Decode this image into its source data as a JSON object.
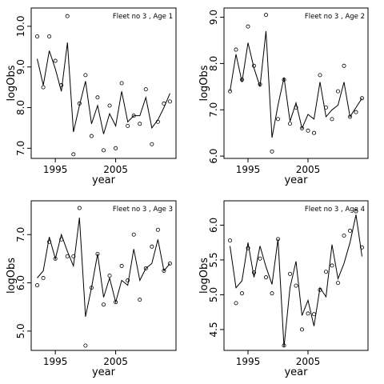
{
  "chart_data": [
    {
      "type": "scatter",
      "title": "Fleet no 3 , Age 1",
      "xlabel": "year",
      "ylabel": "logObs",
      "xlim": [
        1991,
        2015
      ],
      "ylim": [
        6.75,
        10.45
      ],
      "xticks": [
        1995,
        2005
      ],
      "yticks": [
        7.0,
        8.0,
        9.0,
        10.0
      ],
      "series": [
        {
          "kind": "points",
          "x": [
            1992,
            1993,
            1994,
            1995,
            1996,
            1997,
            1998,
            1999,
            2000,
            2001,
            2002,
            2003,
            2004,
            2005,
            2006,
            2007,
            2008,
            2009,
            2010,
            2011,
            2012,
            2013,
            2014
          ],
          "y": [
            9.75,
            8.5,
            9.75,
            9.15,
            8.55,
            10.25,
            6.85,
            8.1,
            8.8,
            7.3,
            8.25,
            6.95,
            8.05,
            7.0,
            8.6,
            7.55,
            7.8,
            7.6,
            8.45,
            7.1,
            7.65,
            8.1,
            8.15
          ]
        },
        {
          "kind": "line",
          "x": [
            1992,
            1993,
            1994,
            1995,
            1996,
            1997,
            1998,
            1999,
            2000,
            2001,
            2002,
            2003,
            2004,
            2005,
            2006,
            2007,
            2008,
            2009,
            2010,
            2011,
            2012,
            2013,
            2014
          ],
          "y": [
            9.2,
            8.55,
            9.4,
            8.95,
            8.4,
            9.6,
            7.4,
            8.05,
            8.65,
            7.6,
            8.05,
            7.35,
            7.85,
            7.55,
            8.4,
            7.65,
            7.8,
            7.8,
            8.25,
            7.5,
            7.7,
            8.0,
            8.35
          ]
        }
      ]
    },
    {
      "type": "scatter",
      "title": "Fleet no 3 , Age 2",
      "xlabel": "year",
      "ylabel": "logObs",
      "xlim": [
        1991,
        2015
      ],
      "ylim": [
        5.95,
        9.2
      ],
      "xticks": [
        1995,
        2005
      ],
      "yticks": [
        6.0,
        7.0,
        8.0,
        9.0
      ],
      "series": [
        {
          "kind": "points",
          "x": [
            1992,
            1993,
            1994,
            1995,
            1996,
            1997,
            1998,
            1999,
            2000,
            2001,
            2002,
            2003,
            2004,
            2005,
            2006,
            2007,
            2008,
            2009,
            2010,
            2011,
            2012,
            2013,
            2014
          ],
          "y": [
            7.4,
            8.3,
            7.65,
            8.8,
            7.95,
            7.55,
            9.05,
            6.1,
            6.8,
            7.65,
            6.7,
            7.05,
            6.6,
            6.55,
            6.5,
            7.75,
            7.05,
            6.8,
            7.4,
            7.95,
            6.85,
            6.95,
            7.25
          ]
        },
        {
          "kind": "line",
          "x": [
            1992,
            1993,
            1994,
            1995,
            1996,
            1997,
            1998,
            1999,
            2000,
            2001,
            2002,
            2003,
            2004,
            2005,
            2006,
            2007,
            2008,
            2009,
            2010,
            2011,
            2012,
            2013,
            2014
          ],
          "y": [
            7.4,
            8.2,
            7.6,
            8.45,
            7.9,
            7.5,
            8.7,
            6.4,
            7.1,
            7.7,
            6.75,
            7.15,
            6.6,
            6.9,
            6.8,
            7.6,
            6.85,
            7.0,
            7.1,
            7.6,
            6.85,
            7.05,
            7.25
          ]
        }
      ]
    },
    {
      "type": "scatter",
      "title": "Fleet no 3 , Age 3",
      "xlabel": "year",
      "ylabel": "logObs",
      "xlim": [
        1991,
        2015
      ],
      "ylim": [
        4.6,
        7.7
      ],
      "xticks": [
        1995,
        2005
      ],
      "yticks": [
        5.0,
        6.0,
        7.0
      ],
      "series": [
        {
          "kind": "points",
          "x": [
            1992,
            1993,
            1994,
            1995,
            1996,
            1997,
            1998,
            1999,
            2000,
            2001,
            2002,
            2003,
            2004,
            2005,
            2006,
            2007,
            2008,
            2009,
            2010,
            2011,
            2012,
            2013,
            2014
          ],
          "y": [
            5.95,
            6.1,
            6.85,
            6.5,
            6.9,
            6.55,
            6.55,
            7.55,
            4.7,
            5.9,
            6.6,
            5.55,
            6.15,
            5.6,
            6.35,
            6.05,
            7.0,
            5.65,
            6.3,
            6.75,
            7.1,
            6.25,
            6.4
          ]
        },
        {
          "kind": "line",
          "x": [
            1992,
            1993,
            1994,
            1995,
            1996,
            1997,
            1998,
            1999,
            2000,
            2001,
            2002,
            2003,
            2004,
            2005,
            2006,
            2007,
            2008,
            2009,
            2010,
            2011,
            2012,
            2013,
            2014
          ],
          "y": [
            6.1,
            6.25,
            6.95,
            6.5,
            7.0,
            6.65,
            6.35,
            7.35,
            5.3,
            5.9,
            6.6,
            5.7,
            6.1,
            5.6,
            6.05,
            5.95,
            6.7,
            6.05,
            6.3,
            6.4,
            6.9,
            6.25,
            6.4
          ]
        }
      ]
    },
    {
      "type": "scatter",
      "title": "Fleet no 3 , Age 4",
      "xlabel": "year",
      "ylabel": "logObs",
      "xlim": [
        1991,
        2015
      ],
      "ylim": [
        4.2,
        6.35
      ],
      "xticks": [
        1995,
        2005
      ],
      "yticks": [
        4.5,
        5.0,
        5.5,
        6.0
      ],
      "series": [
        {
          "kind": "points",
          "x": [
            1992,
            1993,
            1994,
            1995,
            1996,
            1997,
            1998,
            1999,
            2000,
            2001,
            2002,
            2003,
            2004,
            2005,
            2006,
            2007,
            2008,
            2009,
            2010,
            2011,
            2012,
            2013,
            2014
          ],
          "y": [
            5.78,
            4.88,
            5.02,
            5.67,
            5.32,
            5.52,
            5.25,
            5.02,
            5.8,
            4.27,
            5.3,
            5.13,
            4.5,
            4.73,
            4.72,
            5.07,
            5.33,
            5.42,
            5.17,
            5.85,
            5.92,
            6.2,
            5.68
          ]
        },
        {
          "kind": "line",
          "x": [
            1992,
            1993,
            1994,
            1995,
            1996,
            1997,
            1998,
            1999,
            2000,
            2001,
            2002,
            2003,
            2004,
            2005,
            2006,
            2007,
            2008,
            2009,
            2010,
            2011,
            2012,
            2013,
            2014
          ],
          "y": [
            5.7,
            5.1,
            5.2,
            5.75,
            5.25,
            5.7,
            5.4,
            5.15,
            5.8,
            4.25,
            5.1,
            5.48,
            4.7,
            4.92,
            4.55,
            5.1,
            4.97,
            5.72,
            5.23,
            5.45,
            5.75,
            6.15,
            5.55
          ]
        }
      ]
    }
  ]
}
